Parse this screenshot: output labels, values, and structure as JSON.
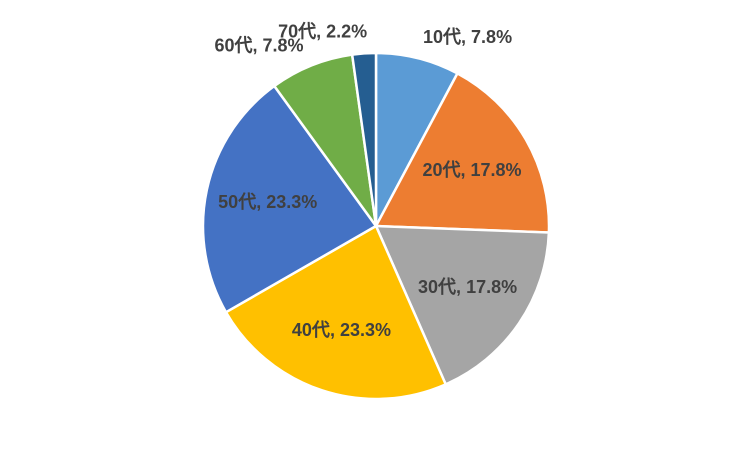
{
  "chart_data": {
    "type": "pie",
    "categories": [
      "10代",
      "20代",
      "30代",
      "40代",
      "50代",
      "60代",
      "70代"
    ],
    "values": [
      7.8,
      17.8,
      17.8,
      23.3,
      23.3,
      7.8,
      2.2
    ],
    "value_labels": [
      "7.8%",
      "17.8%",
      "17.8%",
      "23.3%",
      "23.3%",
      "7.8%",
      "2.2%"
    ],
    "label_separator": ", ",
    "colors": [
      "#5b9bd5",
      "#ed7d31",
      "#a5a5a5",
      "#ffc000",
      "#4472c4",
      "#70ad47",
      "#255e91"
    ]
  }
}
